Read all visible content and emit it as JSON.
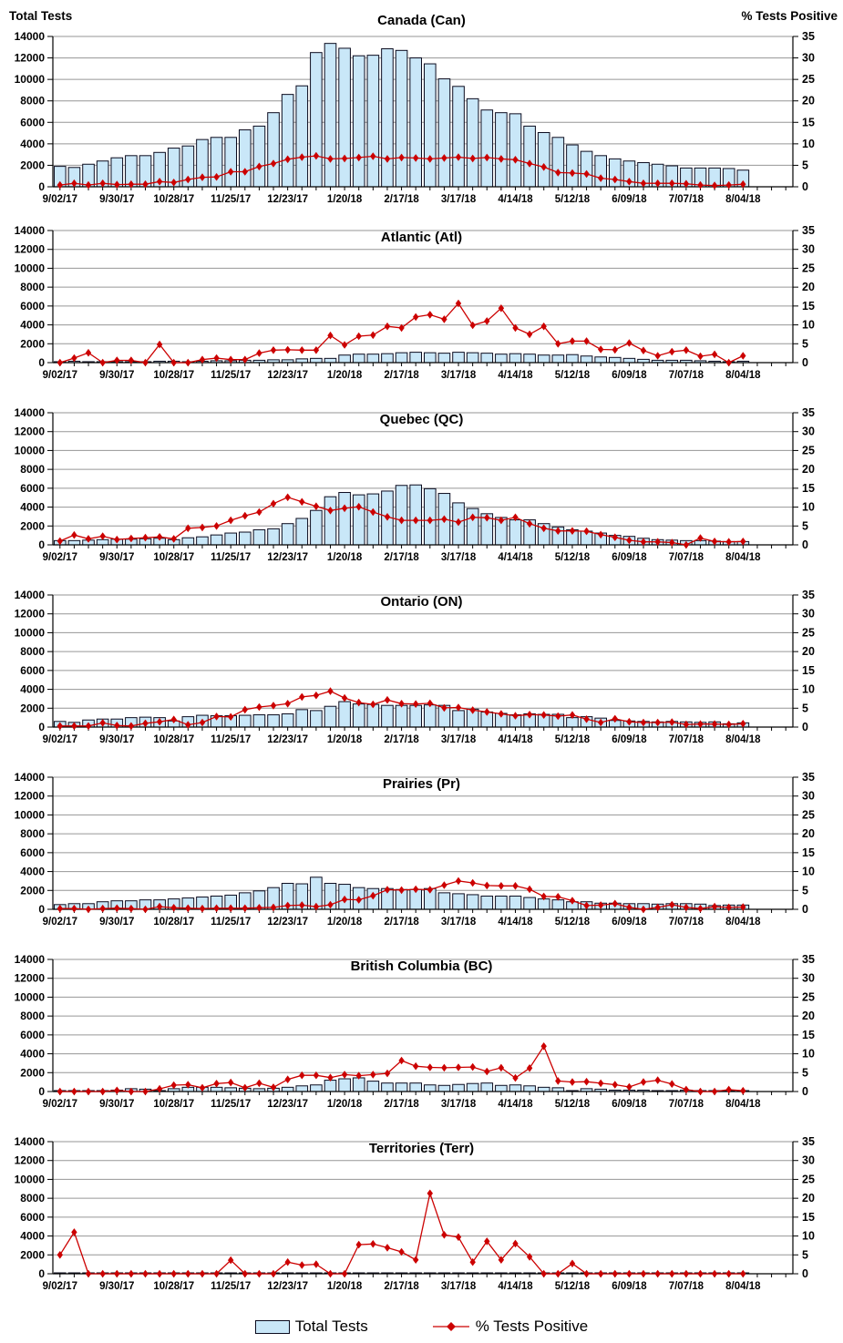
{
  "page": {
    "left_axis_title": "Total Tests",
    "right_axis_title": "% Tests Positive",
    "legend": {
      "bar_label": "Total Tests",
      "line_label": "% Tests Positive"
    }
  },
  "colors": {
    "bar_fill": "#C9E7F8",
    "bar_stroke": "#0b0b1e",
    "line": "#CC0000",
    "gridline": "#969696",
    "axis": "#000000",
    "text": "#000000"
  },
  "axes": {
    "left_max": 14000,
    "right_max": 35,
    "left_ticks": [
      0,
      2000,
      4000,
      6000,
      8000,
      10000,
      12000,
      14000
    ],
    "right_ticks": [
      0,
      5,
      10,
      15,
      20,
      25,
      30,
      35
    ],
    "x_tick_labels": [
      "9/02/17",
      "9/30/17",
      "10/28/17",
      "11/25/17",
      "12/23/17",
      "1/20/18",
      "2/17/18",
      "3/17/18",
      "4/14/18",
      "5/12/18",
      "6/09/18",
      "7/07/18",
      "8/04/18"
    ],
    "label_every_n_weeks": 4,
    "n_weeks": 49,
    "extra_week_ticks": 3,
    "grid": true
  },
  "chart_data": [
    {
      "type": "bar+line",
      "id": "can",
      "title": "Canada (Can)",
      "series": [
        {
          "name": "Total Tests",
          "kind": "bar",
          "axis": "left",
          "values": [
            1900,
            1800,
            2100,
            2400,
            2700,
            2900,
            2900,
            3200,
            3600,
            3800,
            4400,
            4600,
            4600,
            5300,
            5650,
            6900,
            8600,
            9400,
            12500,
            13350,
            12900,
            12200,
            12250,
            12850,
            12700,
            12000,
            11450,
            10050,
            9350,
            8200,
            7150,
            6900,
            6800,
            5650,
            5050,
            4600,
            3900,
            3300,
            2900,
            2600,
            2400,
            2250,
            2100,
            1950,
            1750,
            1750,
            1750,
            1700,
            1550
          ]
        },
        {
          "name": "% Tests Positive",
          "kind": "line",
          "axis": "right",
          "values": [
            0.4,
            0.8,
            0.4,
            0.8,
            0.5,
            0.6,
            0.6,
            1.2,
            1.0,
            1.7,
            2.2,
            2.3,
            3.5,
            3.5,
            4.7,
            5.4,
            6.4,
            6.9,
            7.2,
            6.5,
            6.6,
            6.8,
            7.1,
            6.5,
            6.8,
            6.7,
            6.5,
            6.7,
            6.9,
            6.6,
            6.8,
            6.5,
            6.3,
            5.4,
            4.6,
            3.3,
            3.2,
            3.0,
            2.0,
            1.7,
            1.2,
            0.8,
            0.8,
            0.8,
            0.7,
            0.4,
            0.3,
            0.4,
            0.6
          ]
        }
      ]
    },
    {
      "type": "bar+line",
      "id": "atl",
      "title": "Atlantic (Atl)",
      "series": [
        {
          "name": "Total Tests",
          "kind": "bar",
          "axis": "left",
          "values": [
            100,
            150,
            100,
            100,
            100,
            100,
            100,
            150,
            150,
            100,
            150,
            200,
            200,
            250,
            250,
            300,
            300,
            400,
            450,
            450,
            800,
            900,
            900,
            950,
            1050,
            1100,
            1050,
            1000,
            1100,
            1050,
            1000,
            900,
            950,
            900,
            800,
            800,
            850,
            700,
            600,
            550,
            450,
            350,
            250,
            250,
            250,
            200,
            150,
            100,
            150
          ]
        },
        {
          "name": "% Tests Positive",
          "kind": "line",
          "axis": "right",
          "values": [
            0,
            1.2,
            2.6,
            0,
            0.6,
            0.6,
            0,
            4.8,
            0,
            0,
            0.8,
            1.2,
            0.8,
            0.8,
            2.5,
            3.3,
            3.4,
            3.3,
            3.3,
            7.2,
            4.7,
            7.0,
            7.3,
            9.6,
            9.2,
            12.1,
            12.7,
            11.5,
            15.7,
            9.9,
            11.0,
            14.4,
            9.2,
            7.5,
            9.6,
            5.0,
            5.7,
            5.7,
            3.5,
            3.4,
            5.2,
            3.2,
            1.8,
            2.9,
            3.3,
            1.7,
            2.2,
            0,
            1.8
          ]
        }
      ]
    },
    {
      "type": "bar+line",
      "id": "qc",
      "title": "Quebec (QC)",
      "series": [
        {
          "name": "Total Tests",
          "kind": "bar",
          "axis": "left",
          "values": [
            450,
            450,
            500,
            550,
            600,
            600,
            650,
            700,
            550,
            750,
            850,
            1050,
            1250,
            1350,
            1600,
            1700,
            2250,
            2800,
            3650,
            5100,
            5550,
            5300,
            5400,
            5700,
            6300,
            6350,
            5950,
            5450,
            4450,
            3850,
            3300,
            2900,
            2650,
            2650,
            2250,
            1900,
            1600,
            1450,
            1250,
            1000,
            900,
            700,
            550,
            500,
            450,
            450,
            400,
            350,
            350
          ]
        },
        {
          "name": "% Tests Positive",
          "kind": "line",
          "axis": "right",
          "values": [
            1.0,
            2.6,
            1.6,
            2.3,
            1.4,
            1.7,
            1.9,
            2.1,
            1.6,
            4.4,
            4.6,
            5.0,
            6.5,
            7.7,
            8.7,
            10.9,
            12.6,
            11.4,
            10.2,
            9.1,
            9.7,
            10.1,
            8.7,
            7.4,
            6.5,
            6.5,
            6.5,
            6.8,
            6.0,
            7.3,
            7.2,
            6.5,
            7.3,
            5.6,
            4.4,
            3.7,
            3.7,
            3.6,
            2.7,
            2.0,
            1.2,
            0.8,
            0.8,
            0.6,
            0,
            1.8,
            0.9,
            0.8,
            0.9
          ]
        }
      ]
    },
    {
      "type": "bar+line",
      "id": "on",
      "title": "Ontario (ON)",
      "series": [
        {
          "name": "Total Tests",
          "kind": "bar",
          "axis": "left",
          "values": [
            600,
            500,
            750,
            850,
            850,
            1000,
            1050,
            1000,
            650,
            1100,
            1250,
            1200,
            1200,
            1250,
            1300,
            1300,
            1400,
            1850,
            1750,
            2200,
            2700,
            2450,
            2400,
            2300,
            2300,
            2300,
            2350,
            2300,
            1750,
            1900,
            1600,
            1450,
            1300,
            1400,
            1350,
            1350,
            1000,
            1100,
            950,
            700,
            650,
            600,
            550,
            600,
            550,
            500,
            550,
            350,
            450
          ]
        },
        {
          "name": "% Tests Positive",
          "kind": "line",
          "axis": "right",
          "values": [
            0.3,
            0.3,
            0.3,
            1.1,
            0.4,
            0.3,
            1.0,
            1.4,
            2.0,
            0.6,
            1.2,
            2.8,
            2.7,
            4.6,
            5.3,
            5.7,
            6.2,
            8.0,
            8.4,
            9.5,
            7.7,
            6.5,
            6.0,
            7.2,
            6.2,
            6.1,
            6.3,
            5.1,
            5.2,
            4.5,
            4.0,
            3.5,
            3.0,
            3.3,
            3.2,
            2.9,
            3.2,
            2.1,
            1.2,
            2.2,
            1.4,
            1.2,
            1.2,
            1.3,
            0.7,
            0.8,
            0.8,
            0.7,
            0.9
          ]
        }
      ]
    },
    {
      "type": "bar+line",
      "id": "pr",
      "title": "Prairies (Pr)",
      "series": [
        {
          "name": "Total Tests",
          "kind": "bar",
          "axis": "left",
          "values": [
            500,
            600,
            600,
            800,
            900,
            900,
            1000,
            1000,
            1100,
            1200,
            1300,
            1400,
            1500,
            1750,
            1950,
            2300,
            2750,
            2700,
            3400,
            2750,
            2650,
            2300,
            2200,
            2200,
            2100,
            2100,
            2200,
            1750,
            1650,
            1550,
            1400,
            1400,
            1400,
            1250,
            1100,
            1000,
            800,
            800,
            650,
            650,
            600,
            600,
            550,
            600,
            600,
            550,
            400,
            450,
            450
          ]
        },
        {
          "name": "% Tests Positive",
          "kind": "line",
          "axis": "right",
          "values": [
            0.2,
            0.2,
            0,
            0.2,
            0.3,
            0.2,
            0,
            0.7,
            0.4,
            0.3,
            0.2,
            0.3,
            0.3,
            0.3,
            0.4,
            0.5,
            1.0,
            1.1,
            0.7,
            1.2,
            2.6,
            2.5,
            3.6,
            5.2,
            5.1,
            5.3,
            5.2,
            6.4,
            7.5,
            7.0,
            6.3,
            6.2,
            6.2,
            5.3,
            3.4,
            3.3,
            2.3,
            1.0,
            1.1,
            1.5,
            0.5,
            0,
            0.5,
            1.2,
            0.5,
            0.2,
            0.7,
            0.5,
            0.6
          ]
        }
      ]
    },
    {
      "type": "bar+line",
      "id": "bc",
      "title": "British Columbia (BC)",
      "series": [
        {
          "name": "Total Tests",
          "kind": "bar",
          "axis": "left",
          "values": [
            100,
            100,
            100,
            100,
            150,
            300,
            250,
            100,
            300,
            450,
            450,
            450,
            400,
            350,
            300,
            350,
            450,
            600,
            700,
            1200,
            1350,
            1450,
            1100,
            900,
            900,
            900,
            700,
            650,
            750,
            850,
            900,
            650,
            700,
            600,
            450,
            400,
            100,
            300,
            250,
            150,
            150,
            150,
            100,
            100,
            150,
            100,
            100,
            100,
            100
          ]
        },
        {
          "name": "% Tests Positive",
          "kind": "line",
          "axis": "right",
          "values": [
            0,
            0,
            0,
            0,
            0.3,
            0,
            0,
            0.7,
            1.7,
            1.8,
            1.0,
            2.1,
            2.4,
            1.0,
            2.2,
            1.1,
            3.2,
            4.3,
            4.3,
            3.7,
            4.5,
            4.2,
            4.5,
            4.8,
            8.2,
            6.7,
            6.4,
            6.3,
            6.4,
            6.5,
            5.3,
            6.3,
            3.6,
            6.2,
            12.0,
            2.8,
            2.5,
            2.6,
            2.2,
            1.8,
            1.2,
            2.5,
            3.0,
            2.0,
            0.5,
            0,
            0,
            0.5,
            0.2
          ]
        }
      ]
    },
    {
      "type": "bar+line",
      "id": "terr",
      "title": "Territories (Terr)",
      "series": [
        {
          "name": "Total Tests",
          "kind": "bar",
          "axis": "left",
          "values": [
            0,
            0,
            0,
            0,
            0,
            0,
            0,
            0,
            0,
            0,
            0,
            0,
            0,
            0,
            0,
            0,
            0,
            0,
            0,
            0,
            0,
            0,
            0,
            0,
            0,
            0,
            0,
            0,
            0,
            0,
            0,
            0,
            0,
            0,
            0,
            0,
            0,
            0,
            0,
            0,
            0,
            0,
            0,
            0,
            0,
            0,
            0,
            0,
            0
          ]
        },
        {
          "name": "% Tests Positive",
          "kind": "line",
          "axis": "right",
          "values": [
            5.0,
            11.0,
            0,
            0,
            0,
            0,
            0,
            0,
            0,
            0,
            0,
            0,
            3.6,
            0,
            0,
            0,
            3.1,
            2.3,
            2.5,
            0,
            0,
            7.7,
            7.9,
            6.9,
            5.8,
            3.7,
            21.3,
            10.3,
            9.7,
            3.1,
            8.6,
            3.7,
            8.0,
            4.5,
            0,
            0,
            2.7,
            0,
            0,
            0,
            0,
            0,
            0,
            0,
            0,
            0,
            0,
            0,
            0
          ]
        }
      ]
    }
  ]
}
